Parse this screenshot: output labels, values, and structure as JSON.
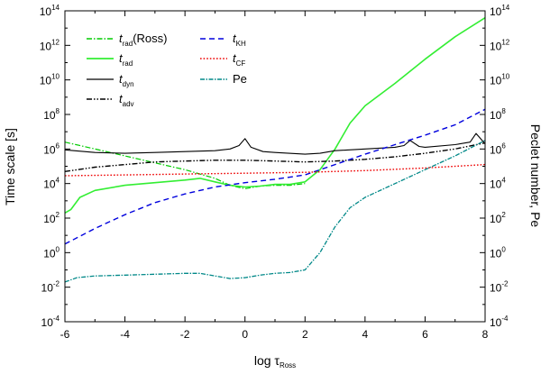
{
  "chart_data": {
    "type": "line",
    "xlabel": {
      "main": "log τ",
      "sub": "Ross"
    },
    "ylabel_left": "Time scale [s]",
    "ylabel_right": "Peclet number, Pe",
    "xlim": [
      -6,
      8
    ],
    "ylim_log10": [
      -4,
      14
    ],
    "x_ticks": [
      "-6",
      "-4",
      "-2",
      "0",
      "2",
      "4",
      "6",
      "8"
    ],
    "y_tick_exponents": [
      "-4",
      "-2",
      "0",
      "2",
      "4",
      "6",
      "8",
      "10",
      "12",
      "14"
    ],
    "y_tick_base": "10",
    "y_scale": "log",
    "legend_placement": "top-left",
    "series": [
      {
        "main": "t",
        "sub": "rad",
        "suffix": "(Ross)",
        "color": "#00cc00",
        "dash": "6,2,1.5,2",
        "width": 1.2,
        "x": [
          -6,
          -5,
          -4,
          -3,
          -2,
          -1,
          -0.5,
          0,
          0.5,
          1,
          1.5,
          2
        ],
        "log10_y": [
          6.4,
          6.0,
          5.6,
          5.2,
          4.8,
          4.3,
          3.9,
          3.7,
          3.85,
          3.9,
          3.9,
          4.0
        ]
      },
      {
        "main": "t",
        "sub": "rad",
        "suffix": "",
        "color": "#33ee33",
        "dash": "",
        "width": 1.6,
        "x": [
          -6,
          -5.8,
          -5.5,
          -5,
          -4,
          -3,
          -2,
          -1.5,
          -1,
          -0.5,
          0,
          0.5,
          1,
          1.5,
          2,
          2.5,
          3,
          3.5,
          4,
          5,
          6,
          7,
          8
        ],
        "log10_y": [
          2.3,
          2.5,
          3.2,
          3.6,
          3.9,
          4.05,
          4.2,
          4.3,
          4.1,
          3.9,
          3.8,
          3.85,
          3.95,
          3.95,
          4.1,
          4.8,
          6.0,
          7.5,
          8.5,
          9.8,
          11.2,
          12.5,
          13.6
        ]
      },
      {
        "main": "t",
        "sub": "dyn",
        "suffix": "",
        "color": "#000000",
        "dash": "",
        "width": 1.1,
        "x": [
          -6,
          -5,
          -4,
          -3,
          -2,
          -1,
          -0.5,
          -0.2,
          0,
          0.2,
          0.6,
          1,
          2,
          2.5,
          3,
          4,
          5,
          5.3,
          5.5,
          5.8,
          6,
          7,
          7.5,
          7.7,
          8
        ],
        "log10_y": [
          5.95,
          5.8,
          5.75,
          5.8,
          5.85,
          5.9,
          6.0,
          6.2,
          6.6,
          6.1,
          5.85,
          5.8,
          5.7,
          5.75,
          5.9,
          6.0,
          6.1,
          6.2,
          6.5,
          6.15,
          6.1,
          6.25,
          6.4,
          6.9,
          6.3
        ]
      },
      {
        "main": "t",
        "sub": "adv",
        "suffix": "",
        "color": "#000000",
        "dash": "6,2,1.5,2,1.5,2",
        "width": 1.4,
        "x": [
          -6,
          -5,
          -4,
          -3,
          -2,
          -1,
          0,
          1,
          2,
          3,
          4,
          5,
          6,
          7,
          8
        ],
        "log10_y": [
          4.7,
          4.95,
          5.1,
          5.25,
          5.3,
          5.35,
          5.35,
          5.3,
          5.25,
          5.3,
          5.4,
          5.55,
          5.75,
          6.0,
          6.35
        ]
      },
      {
        "main": "t",
        "sub": "KH",
        "suffix": "",
        "color": "#0000dd",
        "dash": "6,4",
        "width": 1.4,
        "x": [
          -6,
          -5,
          -4,
          -3,
          -2,
          -1,
          0,
          1,
          2,
          3,
          4,
          5,
          6,
          7,
          8
        ],
        "log10_y": [
          0.5,
          1.4,
          2.2,
          2.9,
          3.4,
          3.8,
          4.05,
          4.25,
          4.5,
          5.1,
          5.7,
          6.25,
          6.8,
          7.4,
          8.3
        ]
      },
      {
        "main": "t",
        "sub": "CF",
        "suffix": "",
        "color": "#ee0000",
        "dash": "1.6,2",
        "width": 1.4,
        "x": [
          -6,
          -4,
          -2,
          0,
          2,
          4,
          6,
          8
        ],
        "log10_y": [
          4.45,
          4.5,
          4.55,
          4.6,
          4.65,
          4.75,
          4.9,
          5.1
        ]
      },
      {
        "main": "Pe",
        "sub": "",
        "suffix": "",
        "color": "#008888",
        "dash": "5,1.5,1.5,1.5",
        "width": 1.3,
        "x": [
          -6,
          -5.6,
          -5,
          -4,
          -3,
          -2,
          -1.5,
          -1,
          -0.5,
          0,
          0.5,
          1,
          1.5,
          2,
          2.5,
          3,
          3.5,
          4,
          5,
          6,
          7,
          8
        ],
        "log10_y": [
          -1.7,
          -1.45,
          -1.35,
          -1.3,
          -1.25,
          -1.2,
          -1.2,
          -1.35,
          -1.5,
          -1.45,
          -1.3,
          -1.2,
          -1.15,
          -1.0,
          0.0,
          1.5,
          2.6,
          3.2,
          4.0,
          4.8,
          5.6,
          6.5
        ]
      }
    ]
  }
}
